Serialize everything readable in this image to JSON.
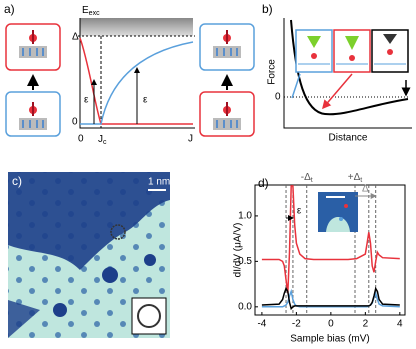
{
  "panels": {
    "a": {
      "label": "a)",
      "ylabel": {
        "main": "E",
        "sub": "exc"
      },
      "delta": "Δ",
      "y0": "0",
      "x0": "0",
      "jc": {
        "main": "J",
        "sub": "c"
      },
      "j": "J",
      "eps1": "ε",
      "eps2": "ε"
    },
    "b": {
      "label": "b)",
      "ylabel": "Force",
      "xlabel": "Distance",
      "zero": "0"
    },
    "c": {
      "label": "c)",
      "scale": "1 nm"
    },
    "d": {
      "label": "d)",
      "xlabel": "Sample bias (mV)",
      "ylabel": "dI/dV (μA/V)",
      "minus_delta": {
        "main": "-Δ",
        "sub": "t"
      },
      "plus_delta": {
        "main": "+Δ",
        "sub": "t"
      },
      "delta": "Δ",
      "eps": "ε",
      "xlim": [
        -4.4,
        4.3
      ],
      "ylim": [
        -0.09,
        1.34
      ],
      "xticks": [
        -4,
        -2,
        0,
        2,
        4
      ],
      "yticks": [
        {
          "value": 0,
          "label": "0.0"
        },
        {
          "value": 0.5,
          "label": "0.5"
        },
        {
          "value": 1,
          "label": "1.0"
        }
      ],
      "dashed_lines": [
        -2.6,
        -2.2,
        -1.4,
        1.4,
        2.2,
        2.6
      ],
      "x": [
        -4,
        -3,
        -2.8,
        -2.7,
        -2.6,
        -2.5,
        -2.4,
        -2.3,
        -2.2,
        -2.1,
        -2,
        -1.8,
        -1.5,
        -1,
        0,
        1,
        1.5,
        2,
        2.1,
        2.2,
        2.3,
        2.4,
        2.5,
        2.6,
        2.7,
        2.8,
        3,
        4
      ],
      "series": [
        {
          "color": "#e8323c",
          "values": [
            0.52,
            0.52,
            0.5,
            0.45,
            0.3,
            0.15,
            0.6,
            1.33,
            1.33,
            0.9,
            0.7,
            0.58,
            0.53,
            0.52,
            0.52,
            0.52,
            0.53,
            0.58,
            0.7,
            0.82,
            0.7,
            0.45,
            0.38,
            0.5,
            0.6,
            0.57,
            0.54,
            0.53
          ]
        },
        {
          "color": "#5aa0dc",
          "values": [
            0,
            0,
            0,
            0.01,
            0.02,
            0.05,
            0.12,
            0.17,
            0.08,
            0.03,
            0.01,
            0,
            0,
            0,
            0,
            0,
            0,
            0,
            0,
            0.01,
            0.02,
            0.04,
            0.1,
            0.15,
            0.08,
            0.03,
            0.01,
            0
          ]
        },
        {
          "color": "#000000",
          "values": [
            0.02,
            0.03,
            0.08,
            0.15,
            0.2,
            0.17,
            0.05,
            -0.02,
            0,
            0.01,
            0.01,
            0.01,
            0.01,
            0.01,
            0.01,
            0.01,
            0.01,
            0.01,
            0.01,
            0.01,
            0.02,
            0.05,
            0.12,
            0.2,
            0.17,
            0.08,
            0.03,
            0.02
          ]
        }
      ]
    }
  }
}
